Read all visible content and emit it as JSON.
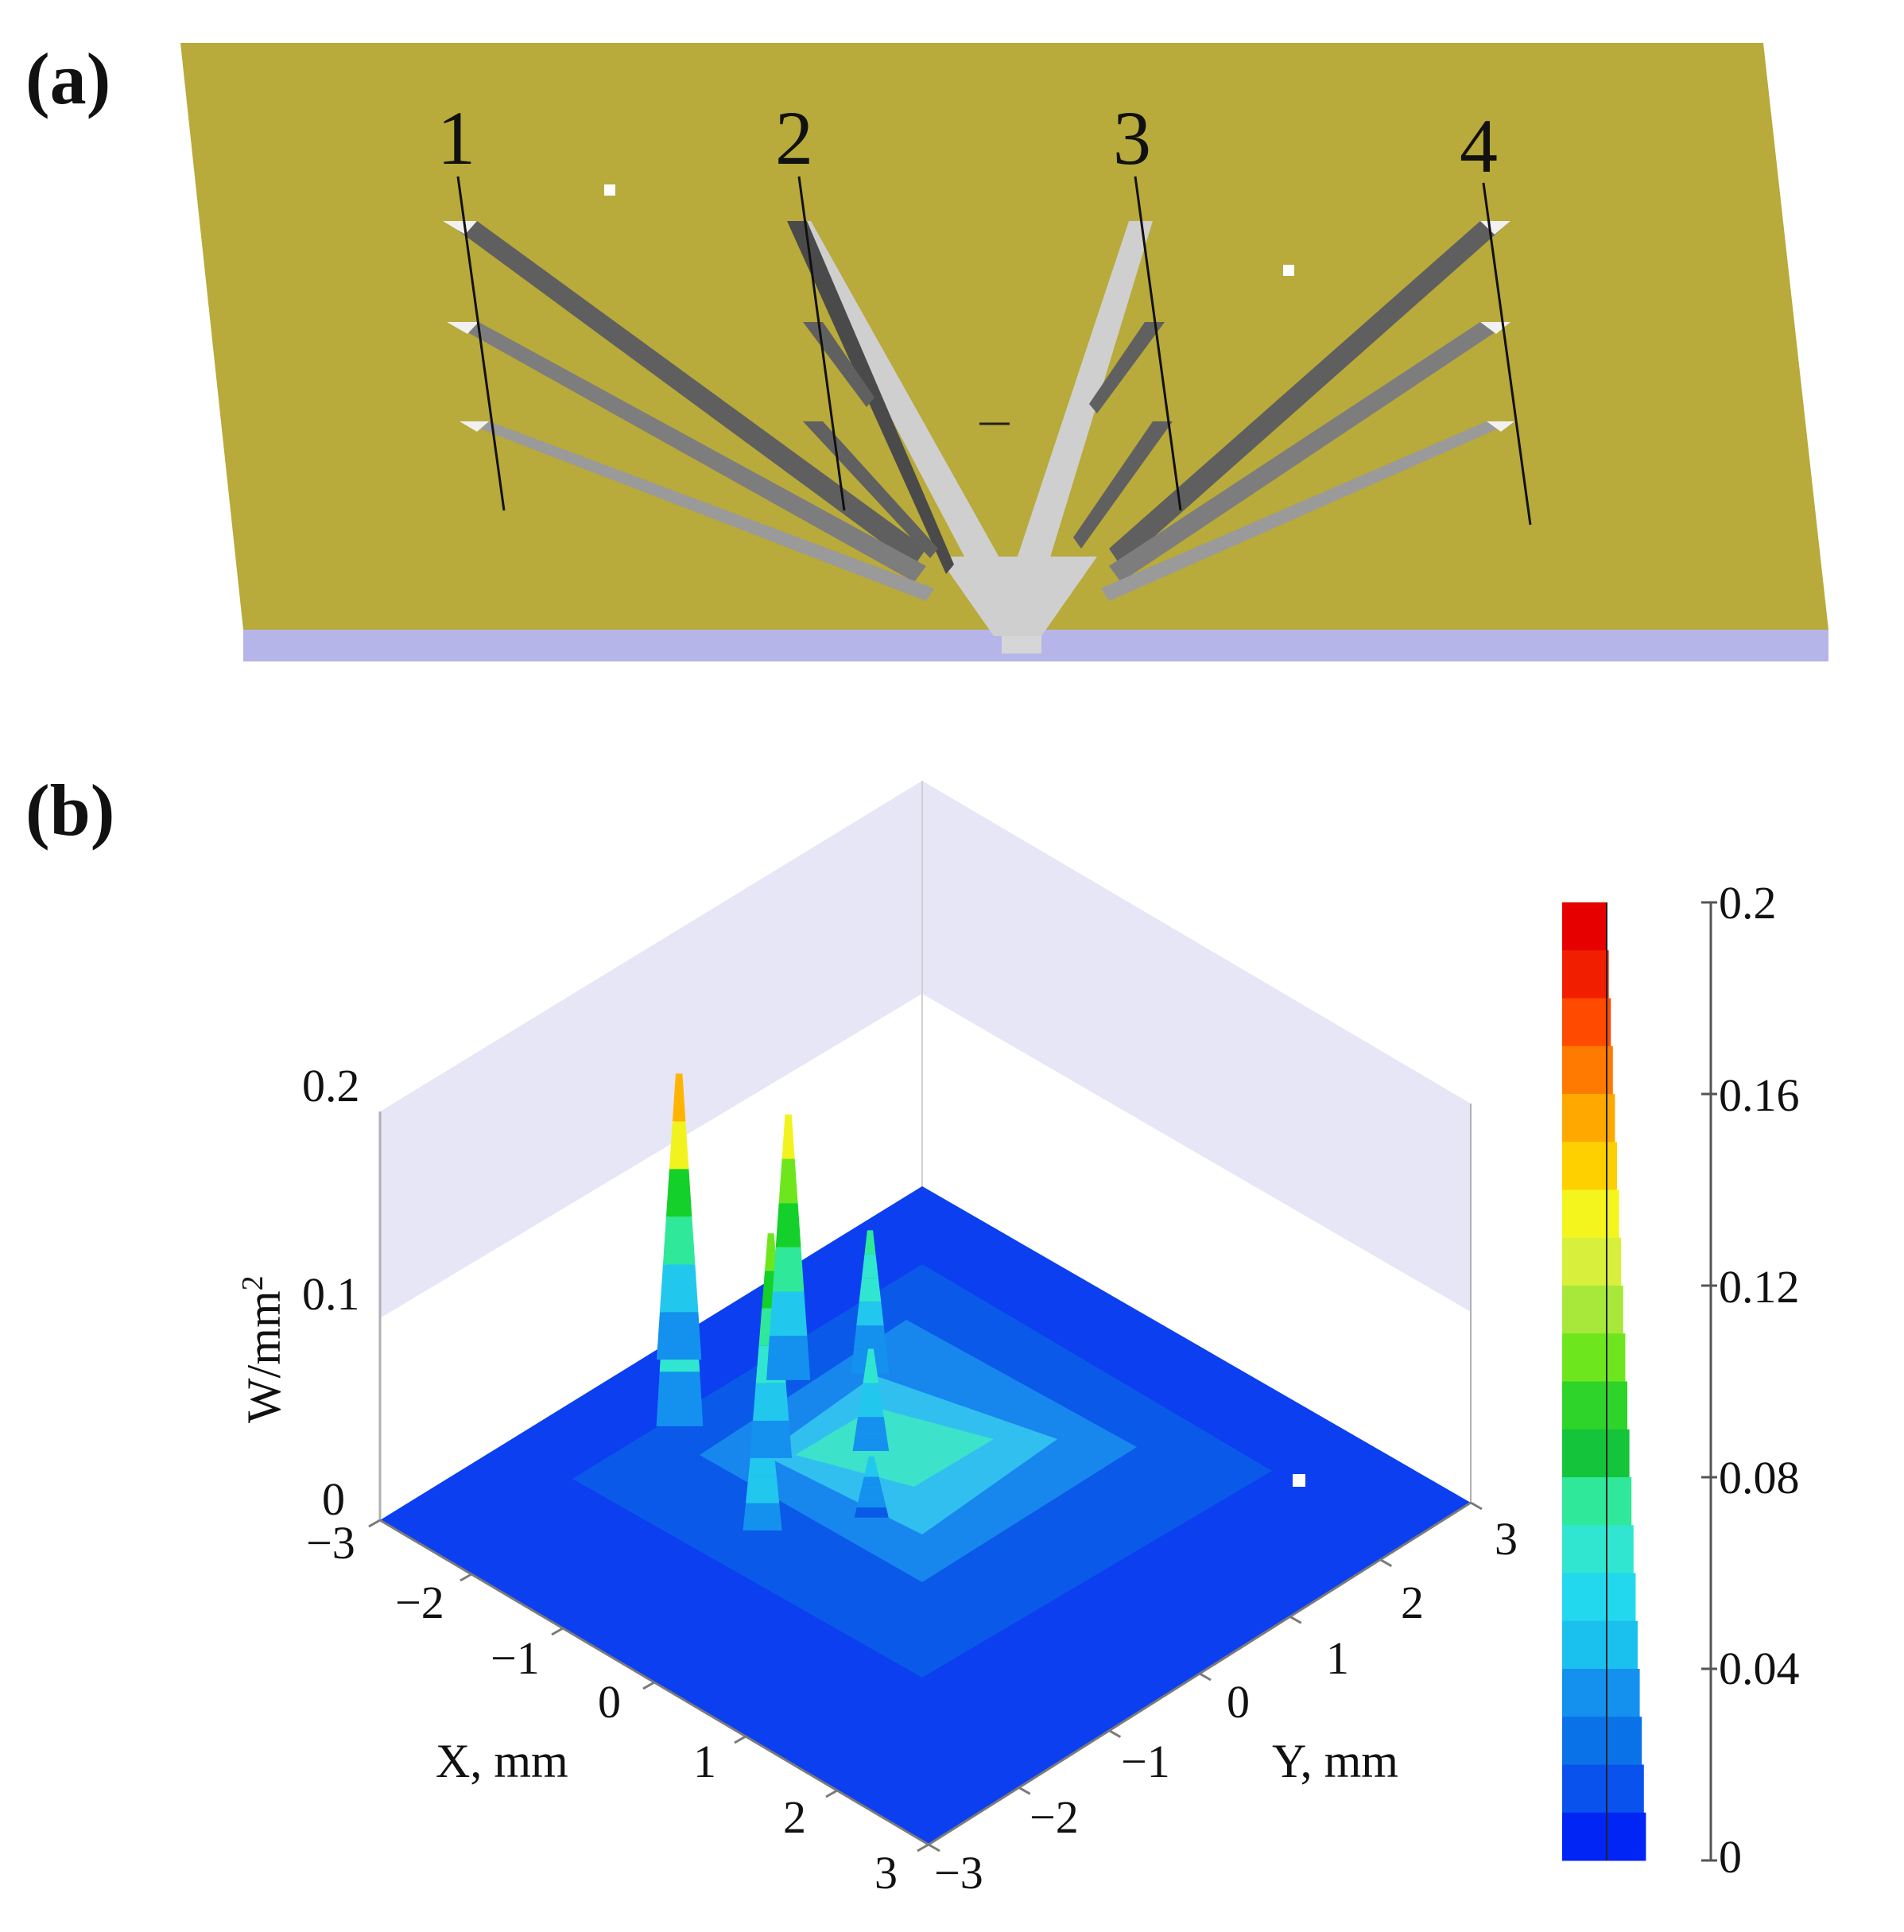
{
  "figure": {
    "panel_a": {
      "label": "(a)",
      "guide_numbers": [
        "1",
        "2",
        "3",
        "4"
      ],
      "colors": {
        "board": "#b8aa3b",
        "board_edge": "#b5b5ea",
        "strip_light": "#c8c8c8",
        "strip_dark": "#5f5f5f"
      }
    },
    "panel_b": {
      "label": "(b)",
      "z_axis_label": "W/mm",
      "z_axis_label_superscript": "2",
      "z_ticks": [
        "0.2",
        "0.1",
        "0"
      ],
      "x_axis_label": "X, mm",
      "y_axis_label": "Y, mm",
      "x_ticks": [
        "−3",
        "−2",
        "−1",
        "0",
        "1",
        "2",
        "3"
      ],
      "y_ticks": [
        "−3",
        "−2",
        "−1",
        "0",
        "1",
        "2",
        "3"
      ],
      "colorbar_ticks": [
        "0.2",
        "0.16",
        "0.12",
        "0.08",
        "0.04",
        "0"
      ]
    }
  },
  "chart_data": {
    "type": "heatmap",
    "subtype": "3d-surface",
    "x_label": "X, mm",
    "y_label": "Y, mm",
    "z_label": "W/mm²",
    "x_range": [
      -3,
      3
    ],
    "y_range": [
      -3,
      3
    ],
    "z_range": [
      0,
      0.2
    ],
    "colorbar_range": [
      0,
      0.2
    ],
    "colorbar_ticks": [
      0,
      0.04,
      0.08,
      0.12,
      0.16,
      0.2
    ],
    "colorbar_levels": 20,
    "colorscale": [
      "#0025f5",
      "#0a5ae8",
      "#1491ee",
      "#22c7ee",
      "#30e6d0",
      "#2fe89a",
      "#14d02a",
      "#6ee61e",
      "#f2f21e",
      "#ffb400",
      "#ff6a00",
      "#e60000"
    ],
    "background_level": 0.02,
    "peaks": [
      {
        "x": -0.2,
        "y": -1.6,
        "z": 0.11
      },
      {
        "x": -0.8,
        "y": -0.9,
        "z": 0.14
      },
      {
        "x": -1.6,
        "y": -1.1,
        "z": 0.19
      },
      {
        "x": -1.4,
        "y": -0.1,
        "z": 0.16
      },
      {
        "x": -2.2,
        "y": -0.5,
        "z": 0.17
      },
      {
        "x": -1.0,
        "y": 0.4,
        "z": 0.1
      },
      {
        "x": 0.3,
        "y": -0.9,
        "z": 0.06
      },
      {
        "x": -0.3,
        "y": -0.3,
        "z": 0.08
      }
    ]
  }
}
